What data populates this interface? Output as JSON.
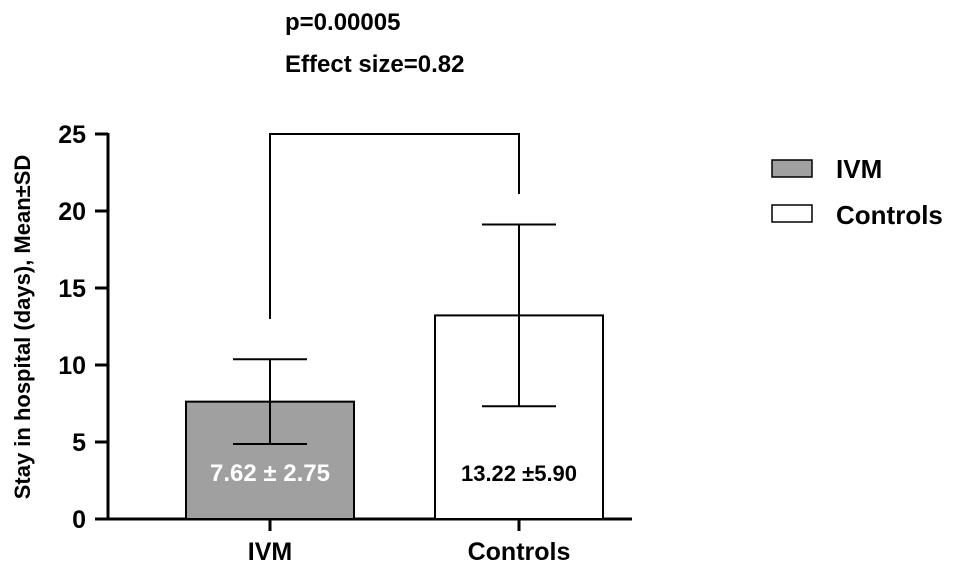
{
  "chart_data": {
    "type": "bar",
    "annotation_lines": [
      "p=0.00005",
      "Effect size=0.82"
    ],
    "ylabel": "Stay in hospital (days), Mean±SD",
    "xlabel": "",
    "ylim": [
      0,
      25
    ],
    "yticks": [
      "0",
      "5",
      "10",
      "15",
      "20",
      "25"
    ],
    "ytick_values": [
      0,
      5,
      10,
      15,
      20,
      25
    ],
    "categories": [
      "IVM",
      "Controls"
    ],
    "values": [
      7.62,
      13.22
    ],
    "sd": [
      2.75,
      5.9
    ],
    "bar_labels": [
      "7.62 ± 2.75",
      "13.22  ±5.90"
    ],
    "bar_colors": [
      "#a0a0a0",
      "#ffffff"
    ],
    "bar_label_colors": [
      "#ffffff",
      "#000000"
    ],
    "legend": [
      {
        "name": "IVM",
        "color": "#a0a0a0"
      },
      {
        "name": "Controls",
        "color": "#ffffff"
      }
    ],
    "legend_position": "right",
    "grid": false,
    "significance_bracket": {
      "from": "IVM",
      "to": "Controls"
    }
  }
}
